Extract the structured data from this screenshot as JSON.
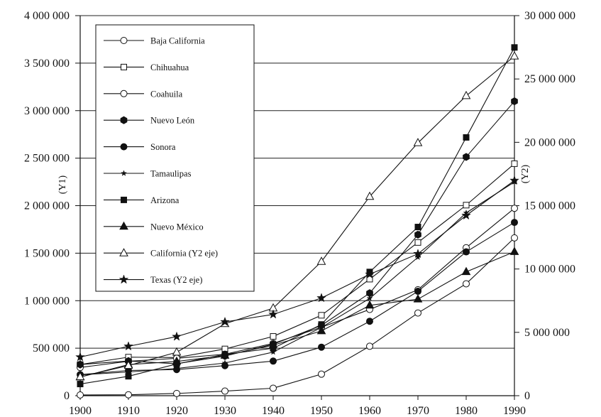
{
  "chart_data": {
    "type": "line",
    "title": "",
    "x": [
      1900,
      1910,
      1920,
      1930,
      1940,
      1950,
      1960,
      1970,
      1980,
      1990
    ],
    "xlim": [
      1900,
      1990
    ],
    "y1": {
      "label": "(Y1)",
      "lim": [
        0,
        4000000
      ],
      "ticks": [
        0,
        500000,
        1000000,
        1500000,
        2000000,
        2500000,
        3000000,
        3500000,
        4000000
      ],
      "tick_labels": [
        "0",
        "500 000",
        "1 000 000",
        "1 500 000",
        "2 000 000",
        "2 500 000",
        "3 000 000",
        "3 500 000",
        "4 000 000"
      ]
    },
    "y2": {
      "label": "(Y2)",
      "lim": [
        0,
        30000000
      ],
      "ticks": [
        0,
        5000000,
        10000000,
        15000000,
        20000000,
        25000000,
        30000000
      ],
      "tick_labels": [
        "0",
        "5 000 000",
        "10 000 000",
        "15 000 000",
        "20 000 000",
        "25 000 000",
        "30 000 000"
      ]
    },
    "grid": "horizontal",
    "legend_position": "top-left",
    "series": [
      {
        "name": "Baja California",
        "marker": "circle-open",
        "axis": "y1",
        "values": [
          7600,
          9800,
          23500,
          48300,
          78900,
          226900,
          520200,
          870400,
          1177900,
          1660900
        ]
      },
      {
        "name": "Chihuahua",
        "marker": "square-open",
        "axis": "y1",
        "values": [
          327800,
          405700,
          401600,
          491800,
          623900,
          846400,
          1226800,
          1612500,
          2005500,
          2441900
        ]
      },
      {
        "name": "Coahuila",
        "marker": "circle-open",
        "axis": "y1",
        "values": [
          296900,
          362100,
          393500,
          436400,
          550700,
          720600,
          907700,
          1115000,
          1557300,
          1972300
        ]
      },
      {
        "name": "Nuevo León",
        "marker": "hexagon-filled",
        "axis": "y1",
        "values": [
          327900,
          365200,
          336400,
          417500,
          541100,
          740200,
          1078800,
          1694700,
          2513000,
          3098700
        ]
      },
      {
        "name": "Sonora",
        "marker": "circle-filled",
        "axis": "y1",
        "values": [
          221700,
          265400,
          275100,
          316300,
          364200,
          510600,
          783400,
          1098700,
          1513700,
          1823600
        ]
      },
      {
        "name": "Tamaulipas",
        "marker": "star-small",
        "axis": "y1",
        "values": [
          218900,
          249600,
          286900,
          344000,
          458800,
          718200,
          1024200,
          1456800,
          1924500,
          2249600
        ]
      },
      {
        "name": "Arizona",
        "marker": "square-filled",
        "axis": "y1",
        "values": [
          122900,
          204400,
          334200,
          435600,
          499300,
          749600,
          1302200,
          1775400,
          2718200,
          3665200
        ]
      },
      {
        "name": "Nuevo México",
        "marker": "triangle-filled",
        "axis": "y1",
        "values": [
          195300,
          327300,
          360400,
          423300,
          531800,
          681200,
          951000,
          1016000,
          1303300,
          1515100
        ]
      },
      {
        "name": "California (Y2 eje)",
        "marker": "triangle-open",
        "axis": "y2",
        "values": [
          1485100,
          2377500,
          3426900,
          5677300,
          6907400,
          10586200,
          15717200,
          19953100,
          23667900,
          26797000
        ]
      },
      {
        "name": "Texas (Y2 eje)",
        "marker": "star-filled",
        "axis": "y2",
        "values": [
          3048700,
          3896500,
          4663200,
          5824700,
          6414800,
          7711200,
          9579700,
          11196700,
          14229200,
          16986500
        ]
      }
    ]
  }
}
